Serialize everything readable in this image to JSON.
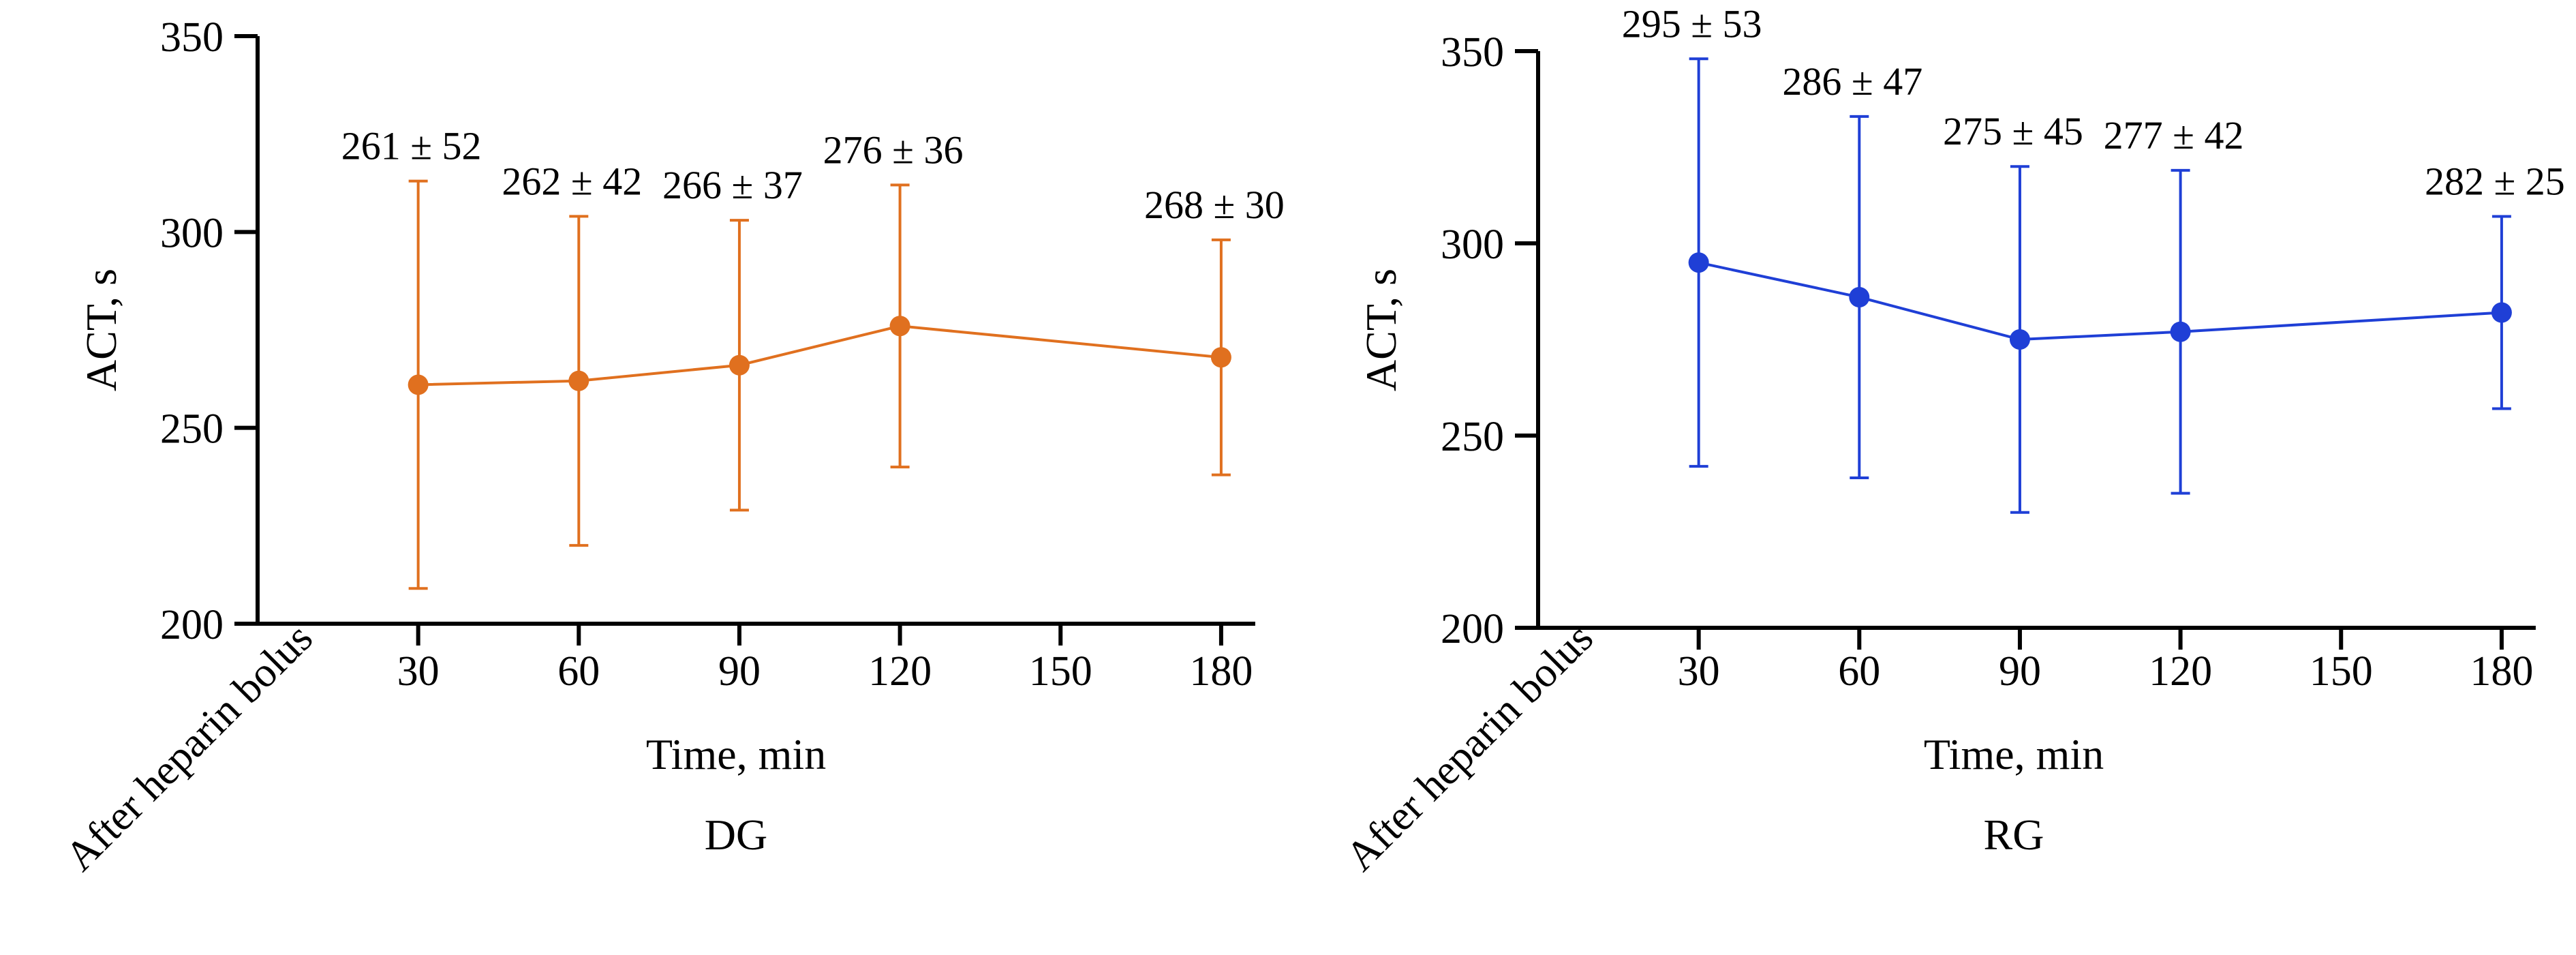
{
  "chart_data": [
    {
      "type": "line",
      "title": "DG",
      "xlabel": "Time, min",
      "ylabel": "ACT, s",
      "x_origin_label": "After heparin bolus",
      "xticks": [
        30,
        60,
        90,
        120,
        150,
        180
      ],
      "yticks": [
        200,
        250,
        300,
        350
      ],
      "xlim": [
        0,
        180
      ],
      "ylim": [
        200,
        350
      ],
      "grid": false,
      "color": "#E0701F",
      "series": [
        {
          "x": [
            30,
            60,
            90,
            120,
            180
          ],
          "mean": [
            261,
            262,
            266,
            276,
            268
          ],
          "sd": [
            52,
            42,
            37,
            36,
            30
          ],
          "labels": [
            "261 ± 52",
            "262 ± 42",
            "266 ± 37",
            "276 ± 36",
            "268 ± 30"
          ]
        }
      ]
    },
    {
      "type": "line",
      "title": "RG",
      "xlabel": "Time, min",
      "ylabel": "ACT, s",
      "x_origin_label": "After heparin bolus",
      "xticks": [
        30,
        60,
        90,
        120,
        150,
        180
      ],
      "yticks": [
        200,
        250,
        300,
        350
      ],
      "xlim": [
        0,
        180
      ],
      "ylim": [
        200,
        350
      ],
      "grid": false,
      "color": "#1F3FD6",
      "series": [
        {
          "x": [
            30,
            60,
            90,
            120,
            180
          ],
          "mean": [
            295,
            286,
            275,
            277,
            282
          ],
          "sd": [
            53,
            47,
            45,
            42,
            25
          ],
          "labels": [
            "295 ± 53",
            "286 ± 47",
            "275 ± 45",
            "277 ± 42",
            "282 ± 25"
          ]
        }
      ]
    }
  ]
}
